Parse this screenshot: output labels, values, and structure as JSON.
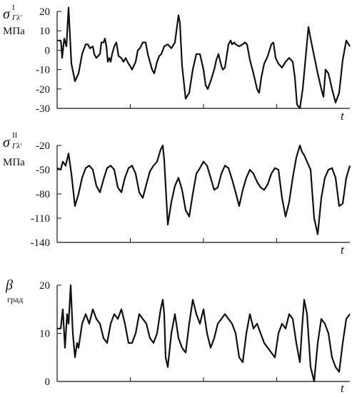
{
  "chart_data": [
    {
      "type": "line",
      "ylabel": {
        "symbol": "σ",
        "sup": "I",
        "sub": "Гλ'",
        "unit": "МПа"
      },
      "xlabel": "t",
      "ylim": [
        -30,
        20
      ],
      "yticks": [
        "20",
        "10",
        "0",
        "-10",
        "-20",
        "-30"
      ],
      "ytick_values": [
        20,
        10,
        0,
        -10,
        -20,
        -30
      ],
      "x": [
        0,
        5,
        6,
        7,
        10,
        13,
        16,
        20,
        25,
        30,
        35,
        40,
        43,
        46,
        50,
        52,
        55,
        60,
        62,
        65,
        67,
        69,
        71,
        73,
        75,
        77,
        80,
        83,
        86,
        90,
        93,
        96,
        100,
        102,
        105,
        110,
        113,
        116,
        120,
        124,
        127,
        130,
        133,
        136,
        140,
        143,
        146,
        150,
        155,
        160,
        165,
        170,
        172,
        175,
        180,
        185,
        190,
        195,
        200,
        205,
        208,
        211,
        215,
        220,
        223,
        226,
        230,
        232,
        235,
        240,
        243,
        245,
        248,
        250,
        255,
        260,
        263,
        266,
        270,
        275,
        280,
        283,
        286,
        290,
        295,
        300,
        303,
        306,
        310,
        315,
        320,
        325,
        330,
        333,
        336,
        340,
        344,
        348,
        352,
        355,
        360,
        365,
        370,
        373,
        376,
        380,
        385,
        390,
        395,
        400,
        405,
        410
      ],
      "y": [
        5,
        5,
        2,
        -4,
        6,
        2,
        22,
        -7,
        -16,
        -12,
        -2,
        3,
        3,
        1,
        2,
        -2,
        -4,
        -2,
        4,
        4,
        6,
        2,
        -6,
        -4,
        -6,
        -2,
        2,
        4,
        -3,
        -4,
        -6,
        -4,
        -7,
        -8,
        -10,
        -6,
        0,
        1,
        4,
        4,
        -2,
        -6,
        -10,
        -12,
        -6,
        -3,
        -2,
        2,
        3,
        1,
        4,
        18,
        14,
        -8,
        -25,
        -22,
        -10,
        -2,
        -2,
        -10,
        -18,
        -20,
        -16,
        -10,
        -5,
        -2,
        -8,
        -10,
        -9,
        3,
        5,
        3,
        4,
        3,
        2,
        3,
        4,
        3,
        -5,
        -12,
        -20,
        -22,
        -14,
        -7,
        -3,
        3,
        4,
        -4,
        -7,
        -9,
        -6,
        -4,
        -6,
        -14,
        -28,
        -30,
        -20,
        -4,
        12,
        6,
        -3,
        -12,
        -20,
        -24,
        -10,
        -12,
        -20,
        -27,
        -22,
        -5,
        5,
        2
      ],
      "series": [
        {
          "values_key": "y"
        }
      ],
      "grid": false
    },
    {
      "type": "line",
      "ylabel": {
        "symbol": "σ",
        "sup": "II",
        "sub": "Гλ'",
        "unit": "МПа"
      },
      "xlabel": "t",
      "ylim": [
        -140,
        -20
      ],
      "yticks": [
        "-20",
        "-50",
        "-80",
        "-110",
        "-140"
      ],
      "ytick_values": [
        -20,
        -50,
        -80,
        -110,
        -140
      ],
      "x": [
        0,
        5,
        8,
        12,
        16,
        20,
        25,
        30,
        35,
        40,
        45,
        50,
        55,
        60,
        65,
        70,
        75,
        80,
        85,
        90,
        95,
        100,
        105,
        110,
        115,
        120,
        125,
        130,
        135,
        140,
        145,
        148,
        150,
        152,
        155,
        160,
        165,
        170,
        175,
        180,
        185,
        190,
        195,
        200,
        205,
        210,
        215,
        220,
        225,
        230,
        235,
        240,
        245,
        250,
        255,
        260,
        265,
        270,
        275,
        280,
        285,
        290,
        295,
        300,
        305,
        310,
        315,
        320,
        325,
        330,
        335,
        340,
        343,
        346,
        350,
        355,
        360,
        365,
        370,
        375,
        380,
        385,
        390,
        395,
        400,
        405,
        410
      ],
      "y": [
        -48,
        -50,
        -40,
        -45,
        -30,
        -55,
        -95,
        -80,
        -60,
        -48,
        -45,
        -50,
        -70,
        -78,
        -62,
        -48,
        -45,
        -50,
        -72,
        -78,
        -60,
        -48,
        -45,
        -55,
        -78,
        -85,
        -68,
        -52,
        -45,
        -40,
        -25,
        -20,
        -38,
        -70,
        -118,
        -90,
        -70,
        -60,
        -75,
        -100,
        -108,
        -80,
        -55,
        -48,
        -40,
        -45,
        -60,
        -75,
        -72,
        -55,
        -45,
        -48,
        -62,
        -78,
        -95,
        -75,
        -60,
        -50,
        -55,
        -65,
        -72,
        -75,
        -68,
        -55,
        -48,
        -50,
        -85,
        -108,
        -90,
        -60,
        -35,
        -20,
        -28,
        -32,
        -40,
        -50,
        -110,
        -130,
        -85,
        -60,
        -50,
        -48,
        -60,
        -95,
        -92,
        -60,
        -45
      ],
      "grid": false
    },
    {
      "type": "line",
      "ylabel": {
        "symbol": "β",
        "unit": "град"
      },
      "xlabel": "t",
      "ylim": [
        0,
        20
      ],
      "yticks": [
        "20",
        "10",
        "0"
      ],
      "ytick_values": [
        20,
        10,
        0
      ],
      "x": [
        0,
        5,
        8,
        11,
        14,
        16,
        19,
        22,
        25,
        28,
        30,
        35,
        40,
        45,
        50,
        55,
        60,
        65,
        70,
        75,
        80,
        85,
        90,
        95,
        100,
        105,
        110,
        115,
        120,
        125,
        130,
        135,
        140,
        145,
        148,
        150,
        152,
        155,
        160,
        165,
        170,
        175,
        180,
        185,
        190,
        195,
        200,
        205,
        210,
        215,
        220,
        225,
        230,
        235,
        240,
        245,
        250,
        255,
        260,
        265,
        270,
        275,
        280,
        285,
        290,
        295,
        300,
        305,
        310,
        315,
        320,
        325,
        330,
        335,
        340,
        343,
        346,
        350,
        355,
        360,
        365,
        370,
        375,
        380,
        385,
        390,
        395,
        400,
        405,
        410
      ],
      "y": [
        11,
        11,
        15,
        7,
        14,
        12,
        20,
        10,
        5,
        8,
        7,
        12,
        14,
        12,
        15,
        13,
        12,
        9,
        8,
        12,
        14,
        13,
        15,
        12,
        8,
        8,
        10,
        14,
        13,
        12,
        9,
        8,
        10,
        15,
        17,
        14,
        5,
        3,
        10,
        14,
        9,
        7,
        6,
        12,
        17,
        14,
        12,
        15,
        10,
        7,
        9,
        12,
        13,
        14,
        13,
        12,
        10,
        5,
        4,
        10,
        14,
        11,
        12,
        10,
        8,
        7,
        6,
        5,
        10,
        12,
        11,
        14,
        13,
        8,
        4,
        11,
        17,
        14,
        3,
        0,
        8,
        13,
        12,
        10,
        5,
        3,
        2,
        8,
        13,
        14
      ],
      "grid": false
    }
  ]
}
